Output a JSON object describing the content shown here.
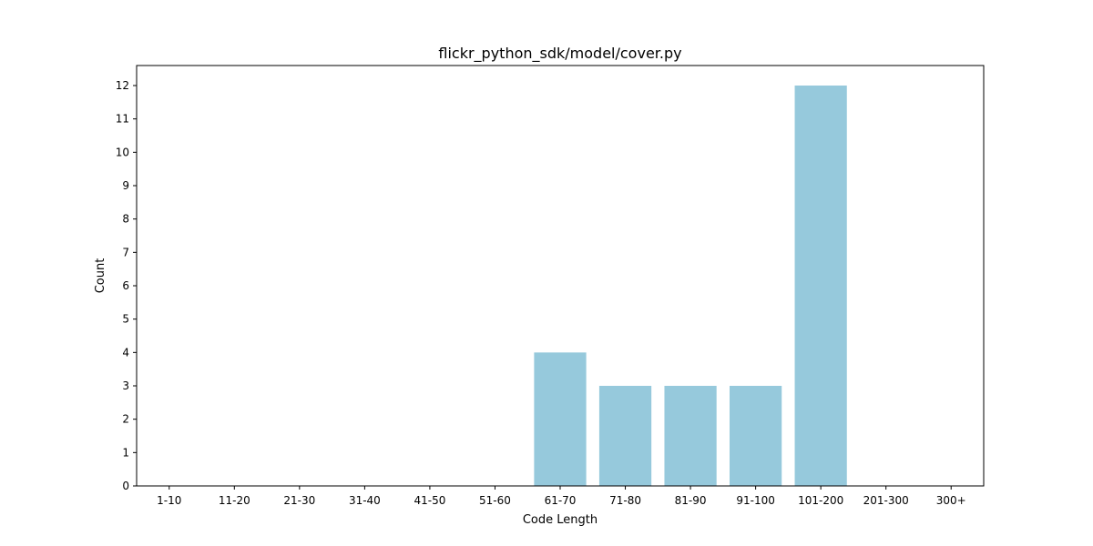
{
  "chart_data": {
    "type": "bar",
    "title": "flickr_python_sdk/model/cover.py",
    "xlabel": "Code Length",
    "ylabel": "Count",
    "categories": [
      "1-10",
      "11-20",
      "21-30",
      "31-40",
      "41-50",
      "51-60",
      "61-70",
      "71-80",
      "81-90",
      "91-100",
      "101-200",
      "201-300",
      "300+"
    ],
    "values": [
      0,
      0,
      0,
      0,
      0,
      0,
      4,
      3,
      3,
      3,
      12,
      0,
      0
    ],
    "ylim": [
      0,
      12.6
    ],
    "yticks": [
      0,
      1,
      2,
      3,
      4,
      5,
      6,
      7,
      8,
      9,
      10,
      11,
      12
    ],
    "bar_color": "#96c9dc",
    "grid": false,
    "legend": "none"
  }
}
